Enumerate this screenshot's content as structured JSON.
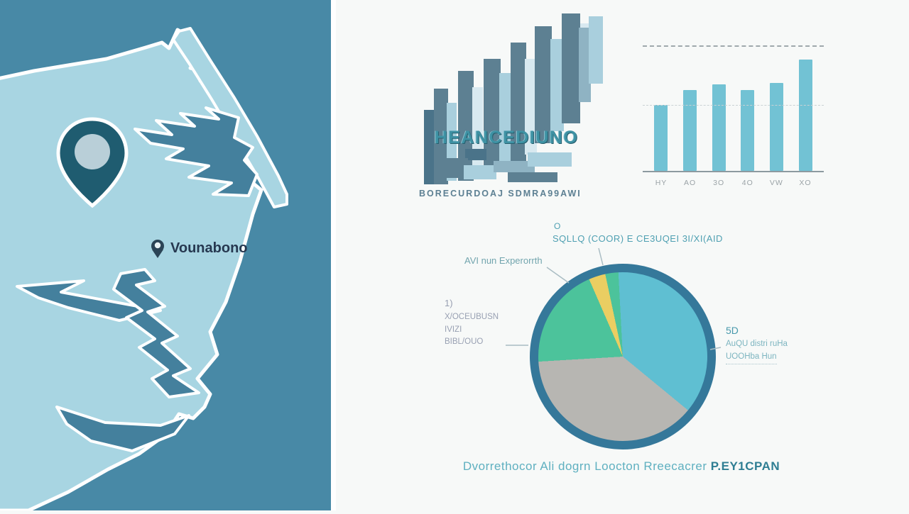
{
  "map": {
    "location_label": "Vounabono",
    "colors": {
      "water": "#4889a6",
      "land": "#a8d5e2",
      "inlet": "#44809d",
      "outline": "#ffffff",
      "pin": "#1f5c70",
      "pin_inner": "#b9cfd8",
      "label_text": "#263850"
    }
  },
  "infographic": {
    "title": "HEANCEDIUNO",
    "subtitle": "BORECURDOAJ SDMRA99AWI",
    "caption": "Dvorrethocor Ali dogrn Loocton  Rreecacrer ",
    "caption_bold": "P.EY1CPAN"
  },
  "chart_data": [
    {
      "type": "bar",
      "title": "",
      "categories": [
        "HY",
        "AO",
        "3O",
        "4O",
        "VW",
        "XO"
      ],
      "values": [
        53,
        65,
        70,
        65,
        71,
        90
      ],
      "xlabel": "",
      "ylabel": "",
      "ylim": [
        0,
        100
      ],
      "bar_color": "#72c2d4",
      "gridlines": {
        "top_dashed_at": 100,
        "mid_dashed_at": 53
      },
      "legend": "none"
    },
    {
      "type": "pie",
      "start_angle_deg": -3,
      "ring_color": "#35789a",
      "segments": [
        {
          "name": "blue-largest",
          "value": 36.8,
          "color": "#5fbfd2"
        },
        {
          "name": "gray",
          "value": 38.1,
          "color": "#b7b6b2"
        },
        {
          "name": "green",
          "value": 19.4,
          "color": "#4cc39b"
        },
        {
          "name": "yellow-sliver",
          "value": 3.2,
          "color": "#eace62"
        },
        {
          "name": "green-sliver",
          "value": 2.5,
          "color": "#4cc39b"
        }
      ],
      "annotations": [
        {
          "position": "top",
          "lines": [
            "O",
            "SQLLQ (COOR) E CE3UQEI 3I/XI(AID"
          ]
        },
        {
          "position": "upper-left",
          "lines": [
            "AVI nun Experorrth"
          ]
        },
        {
          "position": "left",
          "lines": [
            "1)",
            "X/OCEUBUSN",
            "IVIZI",
            "BIBL/OUO"
          ]
        },
        {
          "position": "right",
          "lines": [
            "5D",
            "AuQU distri ruHa",
            "UOOHba Hun"
          ]
        }
      ],
      "legend": "none"
    }
  ]
}
